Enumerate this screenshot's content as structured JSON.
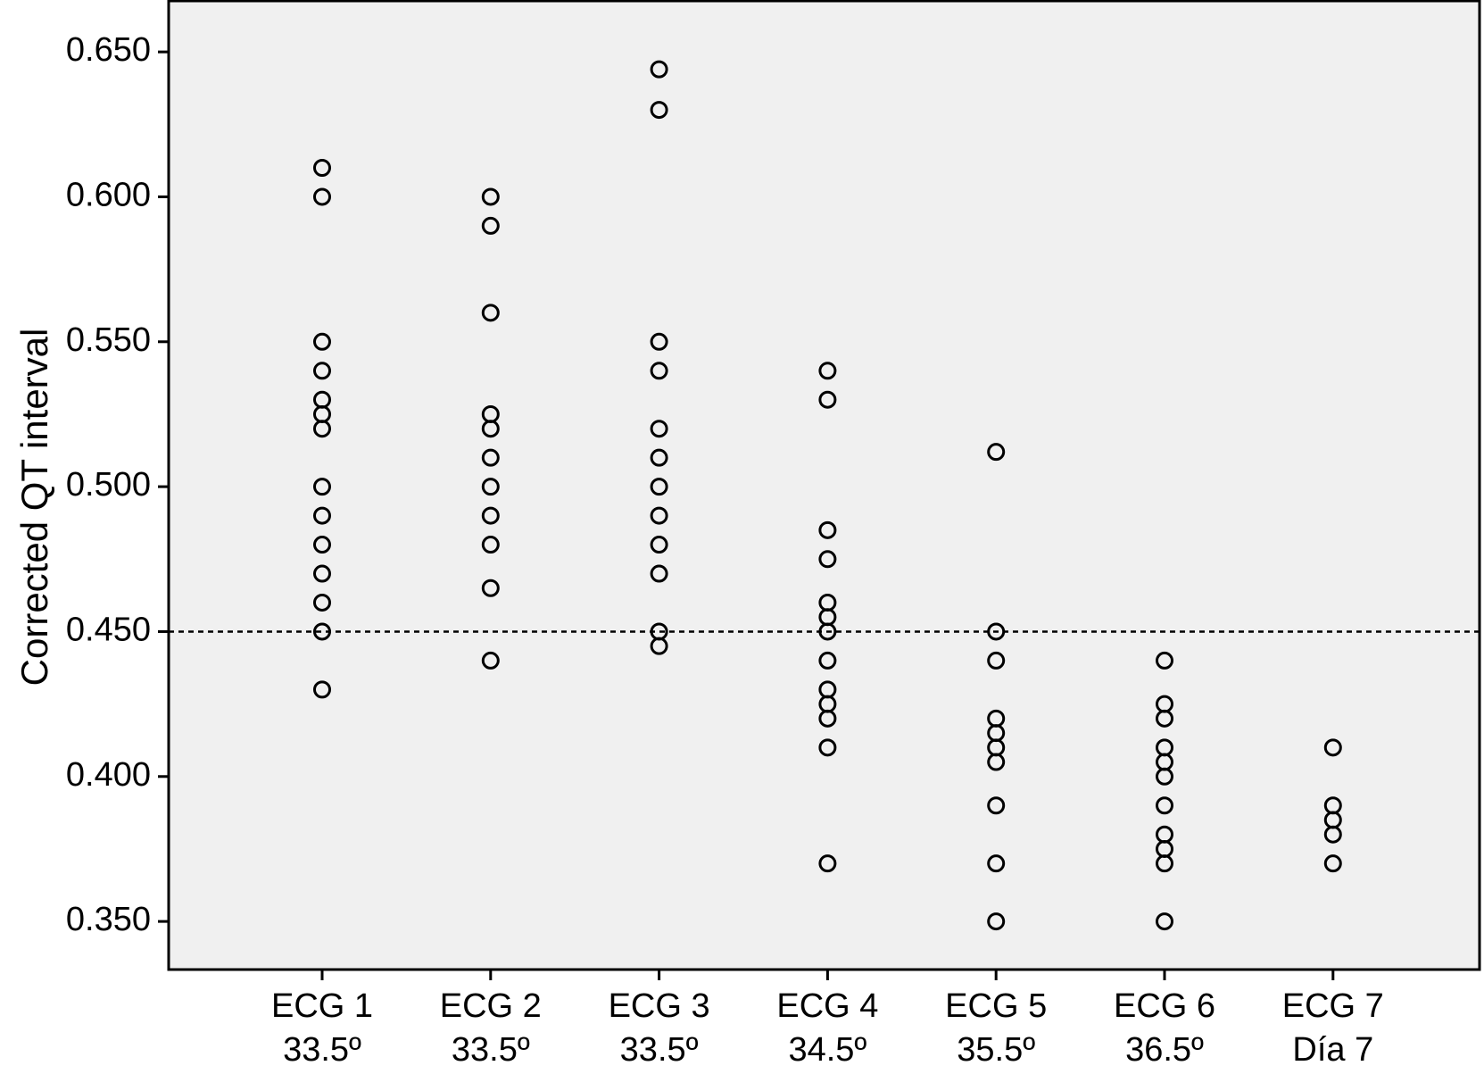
{
  "chart_data": {
    "type": "strip",
    "y_label": "Corrected QT interval",
    "categories": [
      [
        "ECG 1",
        "33.5º"
      ],
      [
        "ECG 2",
        "33.5º"
      ],
      [
        "ECG 3",
        "33.5º"
      ],
      [
        "ECG 4",
        "34.5º"
      ],
      [
        "ECG 5",
        "35.5º"
      ],
      [
        "ECG 6",
        "36.5º"
      ],
      [
        "ECG 7",
        "Día 7"
      ]
    ],
    "values": [
      [
        0.61,
        0.6,
        0.55,
        0.54,
        0.53,
        0.525,
        0.52,
        0.5,
        0.49,
        0.48,
        0.47,
        0.46,
        0.45,
        0.43
      ],
      [
        0.6,
        0.59,
        0.56,
        0.525,
        0.52,
        0.51,
        0.5,
        0.49,
        0.48,
        0.465,
        0.44
      ],
      [
        0.644,
        0.63,
        0.55,
        0.54,
        0.52,
        0.51,
        0.5,
        0.49,
        0.48,
        0.47,
        0.45,
        0.445
      ],
      [
        0.54,
        0.53,
        0.485,
        0.475,
        0.46,
        0.455,
        0.45,
        0.44,
        0.43,
        0.425,
        0.42,
        0.41,
        0.37
      ],
      [
        0.512,
        0.45,
        0.44,
        0.42,
        0.415,
        0.41,
        0.405,
        0.39,
        0.37,
        0.35
      ],
      [
        0.44,
        0.425,
        0.42,
        0.41,
        0.405,
        0.4,
        0.39,
        0.38,
        0.375,
        0.37,
        0.35
      ],
      [
        0.41,
        0.39,
        0.385,
        0.38,
        0.37
      ]
    ],
    "marker": "hollow-circle",
    "color": "#000000",
    "background": "#f0f0f0",
    "reference_line": 0.45,
    "ylim": [
      0.3334,
      0.6676
    ],
    "yticks": [
      {
        "value": 0.35,
        "label": "0.350"
      },
      {
        "value": 0.4,
        "label": "0.400"
      },
      {
        "value": 0.45,
        "label": "0.450"
      },
      {
        "value": 0.5,
        "label": "0.500"
      },
      {
        "value": 0.55,
        "label": "0.550"
      },
      {
        "value": 0.6,
        "label": "0.600"
      },
      {
        "value": 0.65,
        "label": "0.650"
      }
    ],
    "grid": false
  }
}
